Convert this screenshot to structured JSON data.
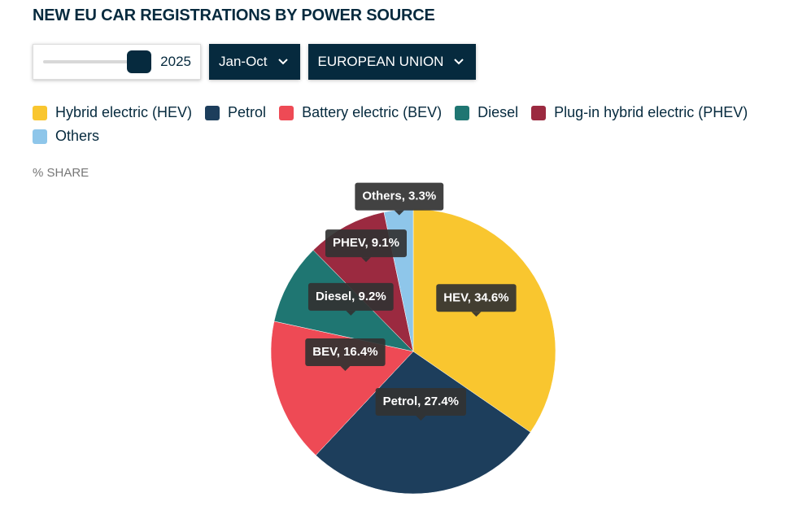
{
  "chart_data": {
    "type": "pie",
    "title": "NEW EU CAR REGISTRATIONS BY POWER SOURCE",
    "controls": {
      "year": "2025",
      "period": "Jan-Oct",
      "region": "EUROPEAN UNION"
    },
    "subtitle": "% SHARE",
    "categories": [
      "Hybrid electric (HEV)",
      "Petrol",
      "Battery electric (BEV)",
      "Diesel",
      "Plug-in hybrid electric (PHEV)",
      "Others"
    ],
    "values": [
      34.6,
      27.4,
      16.4,
      9.2,
      9.1,
      3.3
    ],
    "value_labels": [
      "HEV, 34.6%",
      "Petrol, 27.4%",
      "BEV, 16.4%",
      "Diesel, 9.2%",
      "PHEV, 9.1%",
      "Others, 3.3%"
    ],
    "colors": [
      "#f9c62f",
      "#1d3e5c",
      "#ee4a55",
      "#1f7672",
      "#9b2a40",
      "#8ec6ea"
    ]
  }
}
